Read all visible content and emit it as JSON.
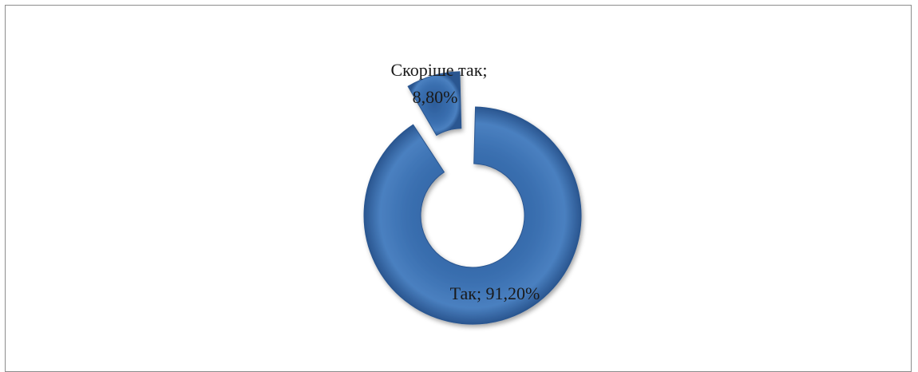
{
  "chart_data": {
    "type": "pie",
    "variant": "exploded-donut",
    "title": "",
    "slices": [
      {
        "label": "Скоріше так",
        "value": 8.8,
        "label_line1": "Скоріше так;",
        "label_line2": "8,80%",
        "color": "#3a6fb0"
      },
      {
        "label": "Так",
        "value": 91.2,
        "label_line1": "Так; 91,20%",
        "color": "#3a6fb0"
      }
    ],
    "legend": "none"
  }
}
